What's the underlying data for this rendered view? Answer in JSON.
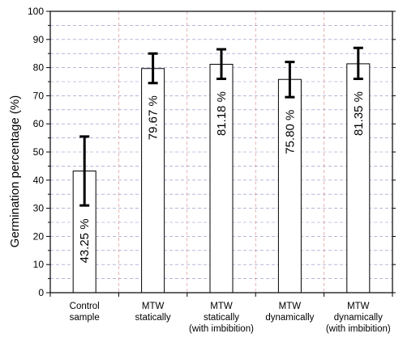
{
  "chart_data": {
    "type": "bar",
    "title": "",
    "xlabel": "",
    "ylabel": "Germination percentage (%)",
    "ylim": [
      0,
      100
    ],
    "ytick_step": 10,
    "yticks": [
      "0",
      "10",
      "20",
      "30",
      "40",
      "50",
      "60",
      "70",
      "80",
      "90",
      "100"
    ],
    "categories": [
      [
        "Control",
        "sample"
      ],
      [
        "MTW",
        "statically"
      ],
      [
        "MTW",
        "statically",
        "(with imbibition)"
      ],
      [
        "MTW",
        "dynamically"
      ],
      [
        "MTW",
        "dynamically",
        "(with imbibition)"
      ]
    ],
    "values": [
      43.25,
      79.67,
      81.18,
      75.8,
      81.35
    ],
    "data_labels": [
      "43.25 %",
      "79.67 %",
      "81.18 %",
      "75.80 %",
      "81.35 %"
    ],
    "error_low": [
      31,
      74.5,
      76,
      69.5,
      76
    ],
    "error_high": [
      55.5,
      85,
      86.5,
      82,
      87
    ],
    "grid": true,
    "colors": {
      "bar_fill": "#ffffff",
      "bar_stroke": "#000000",
      "grid_horizontal": "#8c8cc8",
      "grid_vertical": "#d98080",
      "error_bar": "#000000"
    }
  }
}
